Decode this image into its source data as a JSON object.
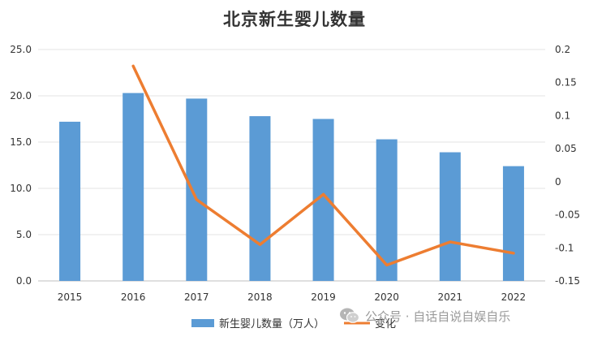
{
  "chart_data": {
    "type": "bar",
    "title": "北京新生婴儿数量",
    "categories": [
      "2015",
      "2016",
      "2017",
      "2018",
      "2019",
      "2020",
      "2021",
      "2022"
    ],
    "series": [
      {
        "name": "新生婴儿数量（万人）",
        "chart": "bar",
        "axis": "left",
        "color": "#5B9BD5",
        "values": [
          17.2,
          20.3,
          19.7,
          17.8,
          17.5,
          15.3,
          13.9,
          12.4
        ]
      },
      {
        "name": "变化",
        "chart": "line",
        "axis": "right",
        "color": "#ED7D31",
        "values": [
          null,
          0.175,
          -0.027,
          -0.095,
          -0.019,
          -0.126,
          -0.091,
          -0.108
        ]
      }
    ],
    "y_left": {
      "min": 0,
      "max": 25,
      "step": 5,
      "tick_labels": [
        "0.0",
        "5.0",
        "10.0",
        "15.0",
        "20.0",
        "25.0"
      ]
    },
    "y_right": {
      "min": -0.15,
      "max": 0.2,
      "step": 0.05,
      "tick_labels": [
        "-0.15",
        "-0.1",
        "-0.05",
        "0",
        "0.05",
        "0.1",
        "0.15",
        "0.2"
      ]
    },
    "grid": true,
    "legend": "bottom"
  },
  "watermark": {
    "text": "公众号 · 自话自说自娱自乐",
    "icon": "wechat-icon"
  }
}
